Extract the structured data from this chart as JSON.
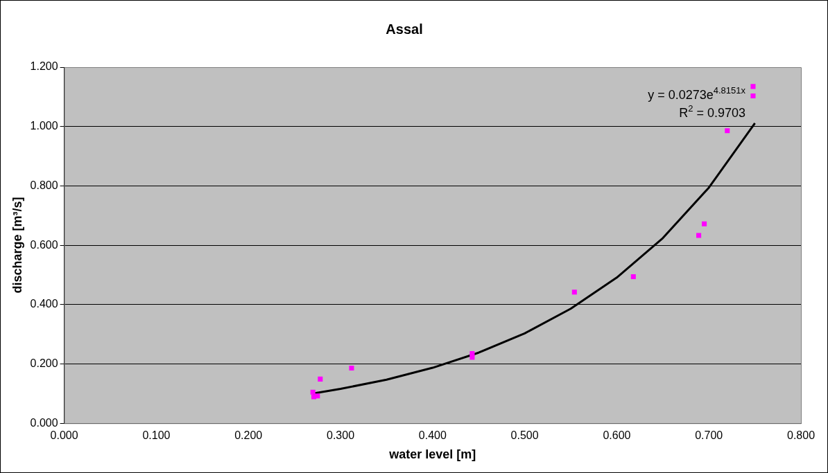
{
  "chart_data": {
    "type": "scatter",
    "title": "Assal",
    "xlabel": "water level [m]",
    "ylabel": "discharge [m³/s]",
    "series": [
      {
        "type": "scatter",
        "color": "#ff00ff",
        "marker": "square",
        "x": [
          0.27,
          0.271,
          0.275,
          0.278,
          0.312,
          0.443,
          0.443,
          0.554,
          0.618,
          0.689,
          0.695,
          0.72,
          0.748,
          0.748
        ],
        "values": [
          0.105,
          0.089,
          0.092,
          0.149,
          0.186,
          0.235,
          0.222,
          0.442,
          0.494,
          0.633,
          0.672,
          0.986,
          1.135,
          1.103
        ]
      },
      {
        "type": "line",
        "color": "#000000",
        "marker": "none",
        "line_style": "solid",
        "x": [
          0.27,
          0.3,
          0.35,
          0.4,
          0.45,
          0.5,
          0.55,
          0.6,
          0.65,
          0.7,
          0.75
        ],
        "values": [
          0.1,
          0.116,
          0.147,
          0.187,
          0.238,
          0.303,
          0.386,
          0.491,
          0.624,
          0.794,
          1.011
        ]
      }
    ],
    "xlim": [
      0,
      0.8
    ],
    "xticks": [
      {
        "value": 0,
        "label": "0.000"
      },
      {
        "value": 0.1,
        "label": "0.100"
      },
      {
        "value": 0.2,
        "label": "0.200"
      },
      {
        "value": 0.3,
        "label": "0.300"
      },
      {
        "value": 0.4,
        "label": "0.400"
      },
      {
        "value": 0.5,
        "label": "0.500"
      },
      {
        "value": 0.6,
        "label": "0.600"
      },
      {
        "value": 0.7,
        "label": "0.700"
      },
      {
        "value": 0.8,
        "label": "0.800"
      }
    ],
    "ylim": [
      0,
      1.2
    ],
    "yticks": [
      {
        "value": 0,
        "label": "0.000"
      },
      {
        "value": 0.2,
        "label": "0.200"
      },
      {
        "value": 0.4,
        "label": "0.400"
      },
      {
        "value": 0.6,
        "label": "0.600"
      },
      {
        "value": 0.8,
        "label": "0.800"
      },
      {
        "value": 1,
        "label": "1.000"
      },
      {
        "value": 1.2,
        "label": "1.200"
      }
    ],
    "grid": "y",
    "legend": false,
    "annotations": [
      "y = 0.0273e$^{4.8151x}$",
      "R$^{2}$ = 0.9703"
    ]
  }
}
